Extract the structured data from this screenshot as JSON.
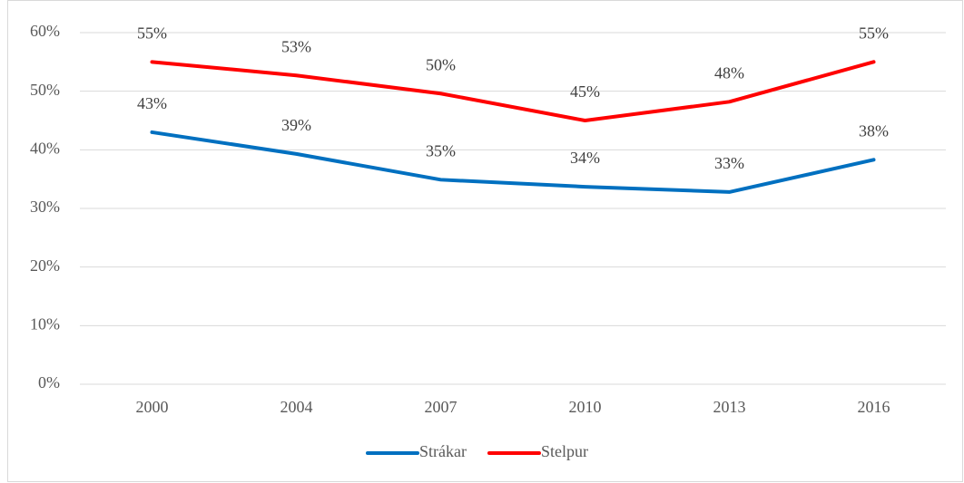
{
  "chart_data": {
    "type": "line",
    "categories": [
      "2000",
      "2004",
      "2007",
      "2010",
      "2013",
      "2016"
    ],
    "series": [
      {
        "name": "Strákar",
        "color": "#0070c0",
        "values": [
          43,
          39.3,
          34.9,
          33.7,
          32.8,
          38.3
        ],
        "value_labels": [
          "43%",
          "39%",
          "35%",
          "34%",
          "33%",
          "38%"
        ]
      },
      {
        "name": "Stelpur",
        "color": "#ff0000",
        "values": [
          55,
          52.7,
          49.6,
          45,
          48.2,
          55
        ],
        "value_labels": [
          "55%",
          "53%",
          "50%",
          "45%",
          "48%",
          "55%"
        ]
      }
    ],
    "ylim": [
      0,
      60
    ],
    "yticks": [
      {
        "value": 0,
        "label": "0%"
      },
      {
        "value": 10,
        "label": "10%"
      },
      {
        "value": 20,
        "label": "20%"
      },
      {
        "value": 30,
        "label": "30%"
      },
      {
        "value": 40,
        "label": "40%"
      },
      {
        "value": 50,
        "label": "50%"
      },
      {
        "value": 60,
        "label": "60%"
      }
    ],
    "grid": true,
    "legend": "bottom"
  }
}
